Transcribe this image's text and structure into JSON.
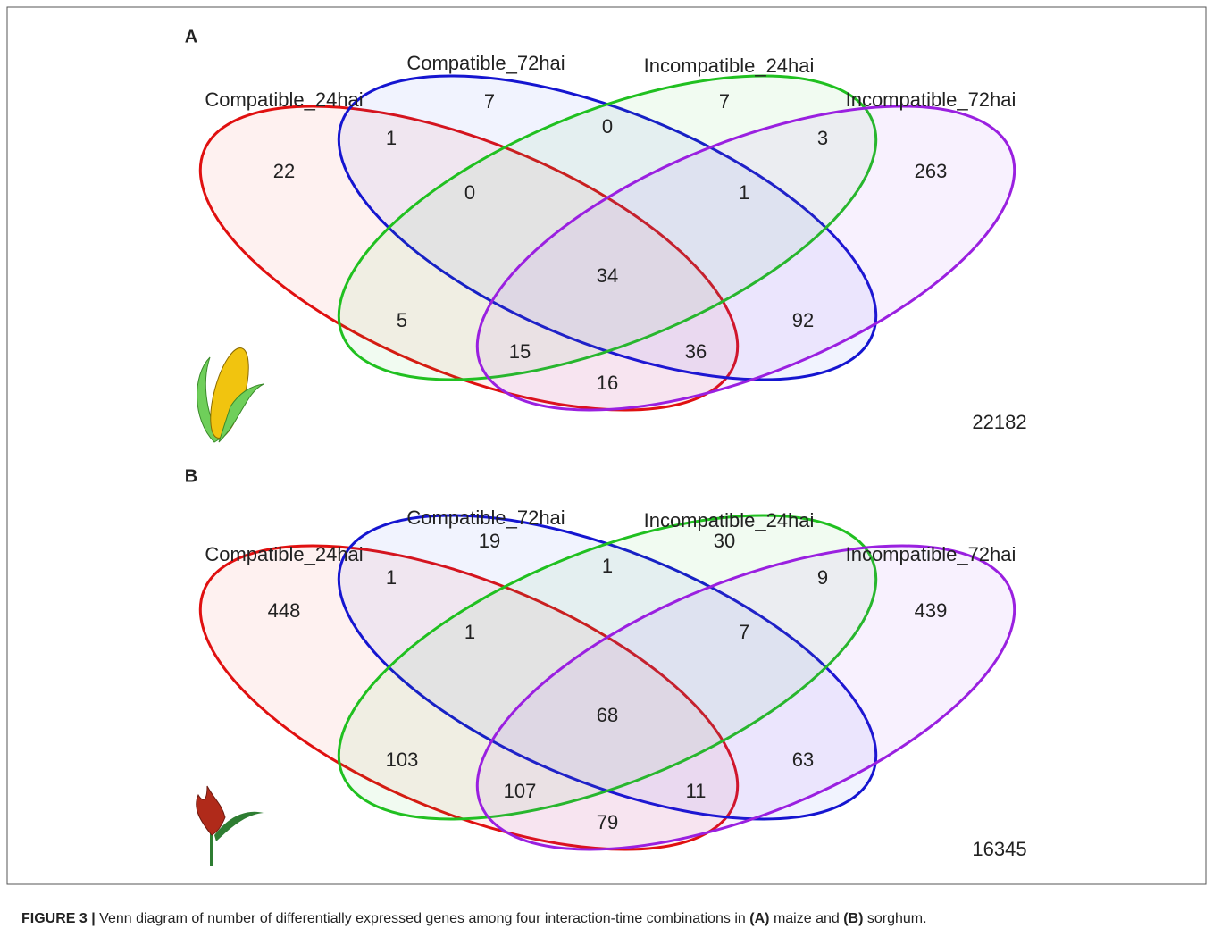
{
  "figure": {
    "panels": [
      {
        "label": "A",
        "sets": [
          "Compatible_24hai",
          "Compatible_72hai",
          "Incompatible_24hai",
          "Incompatible_72hai"
        ],
        "regions": [
          7,
          7,
          0,
          1,
          3,
          22,
          263,
          0,
          1,
          34,
          5,
          92,
          15,
          36,
          16
        ],
        "outside": 22182
      },
      {
        "label": "B",
        "sets": [
          "Compatible_24hai",
          "Compatible_72hai",
          "Incompatible_24hai",
          "Incompatible_72hai"
        ],
        "regions": [
          19,
          30,
          1,
          1,
          9,
          448,
          439,
          1,
          7,
          68,
          103,
          63,
          107,
          11,
          79
        ],
        "outside": 16345
      }
    ],
    "caption": [
      "FIGURE 3 |",
      " Venn diagram of number of differentially expressed genes among four interaction-time combinations in ",
      "(A)",
      " maize and ",
      "(B)",
      " sorghum."
    ]
  }
}
